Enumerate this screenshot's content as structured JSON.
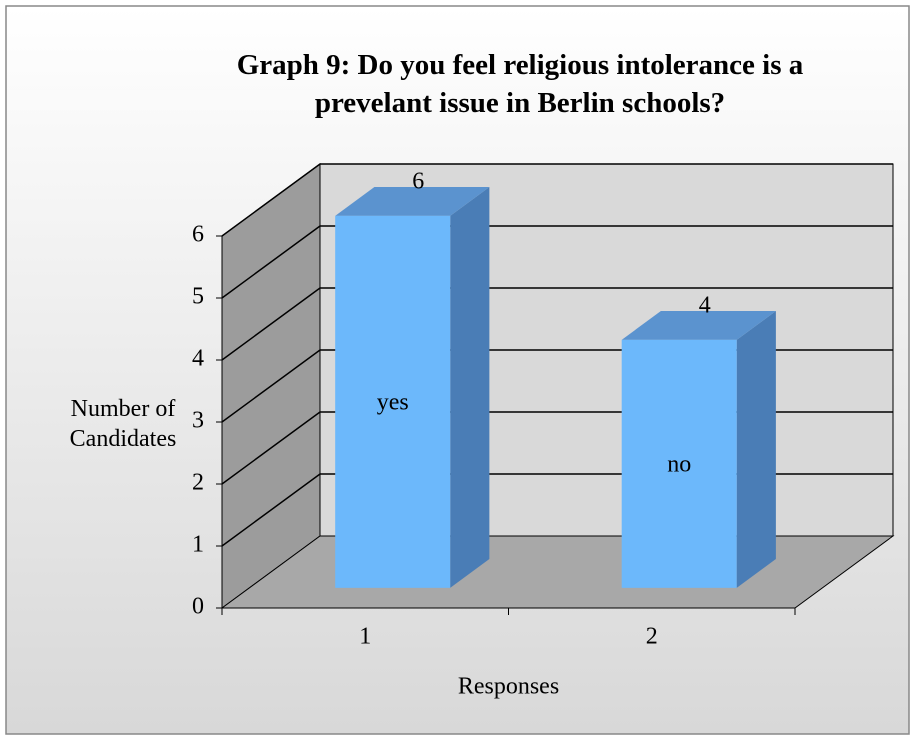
{
  "chart_data": {
    "type": "bar3d",
    "title": "Graph 9: Do you feel religious intolerance is a prevelant issue in Berlin schools?",
    "y_label": "Number of Candidates",
    "x_label": "Responses",
    "categories": [
      "1",
      "2"
    ],
    "values": [
      6,
      4
    ],
    "bar_labels": [
      "yes",
      "no"
    ],
    "color": "#6cb8fb",
    "ylim": [
      0,
      6
    ],
    "yticks": [
      0,
      1,
      2,
      3,
      4,
      5,
      6
    ],
    "grid": true
  }
}
